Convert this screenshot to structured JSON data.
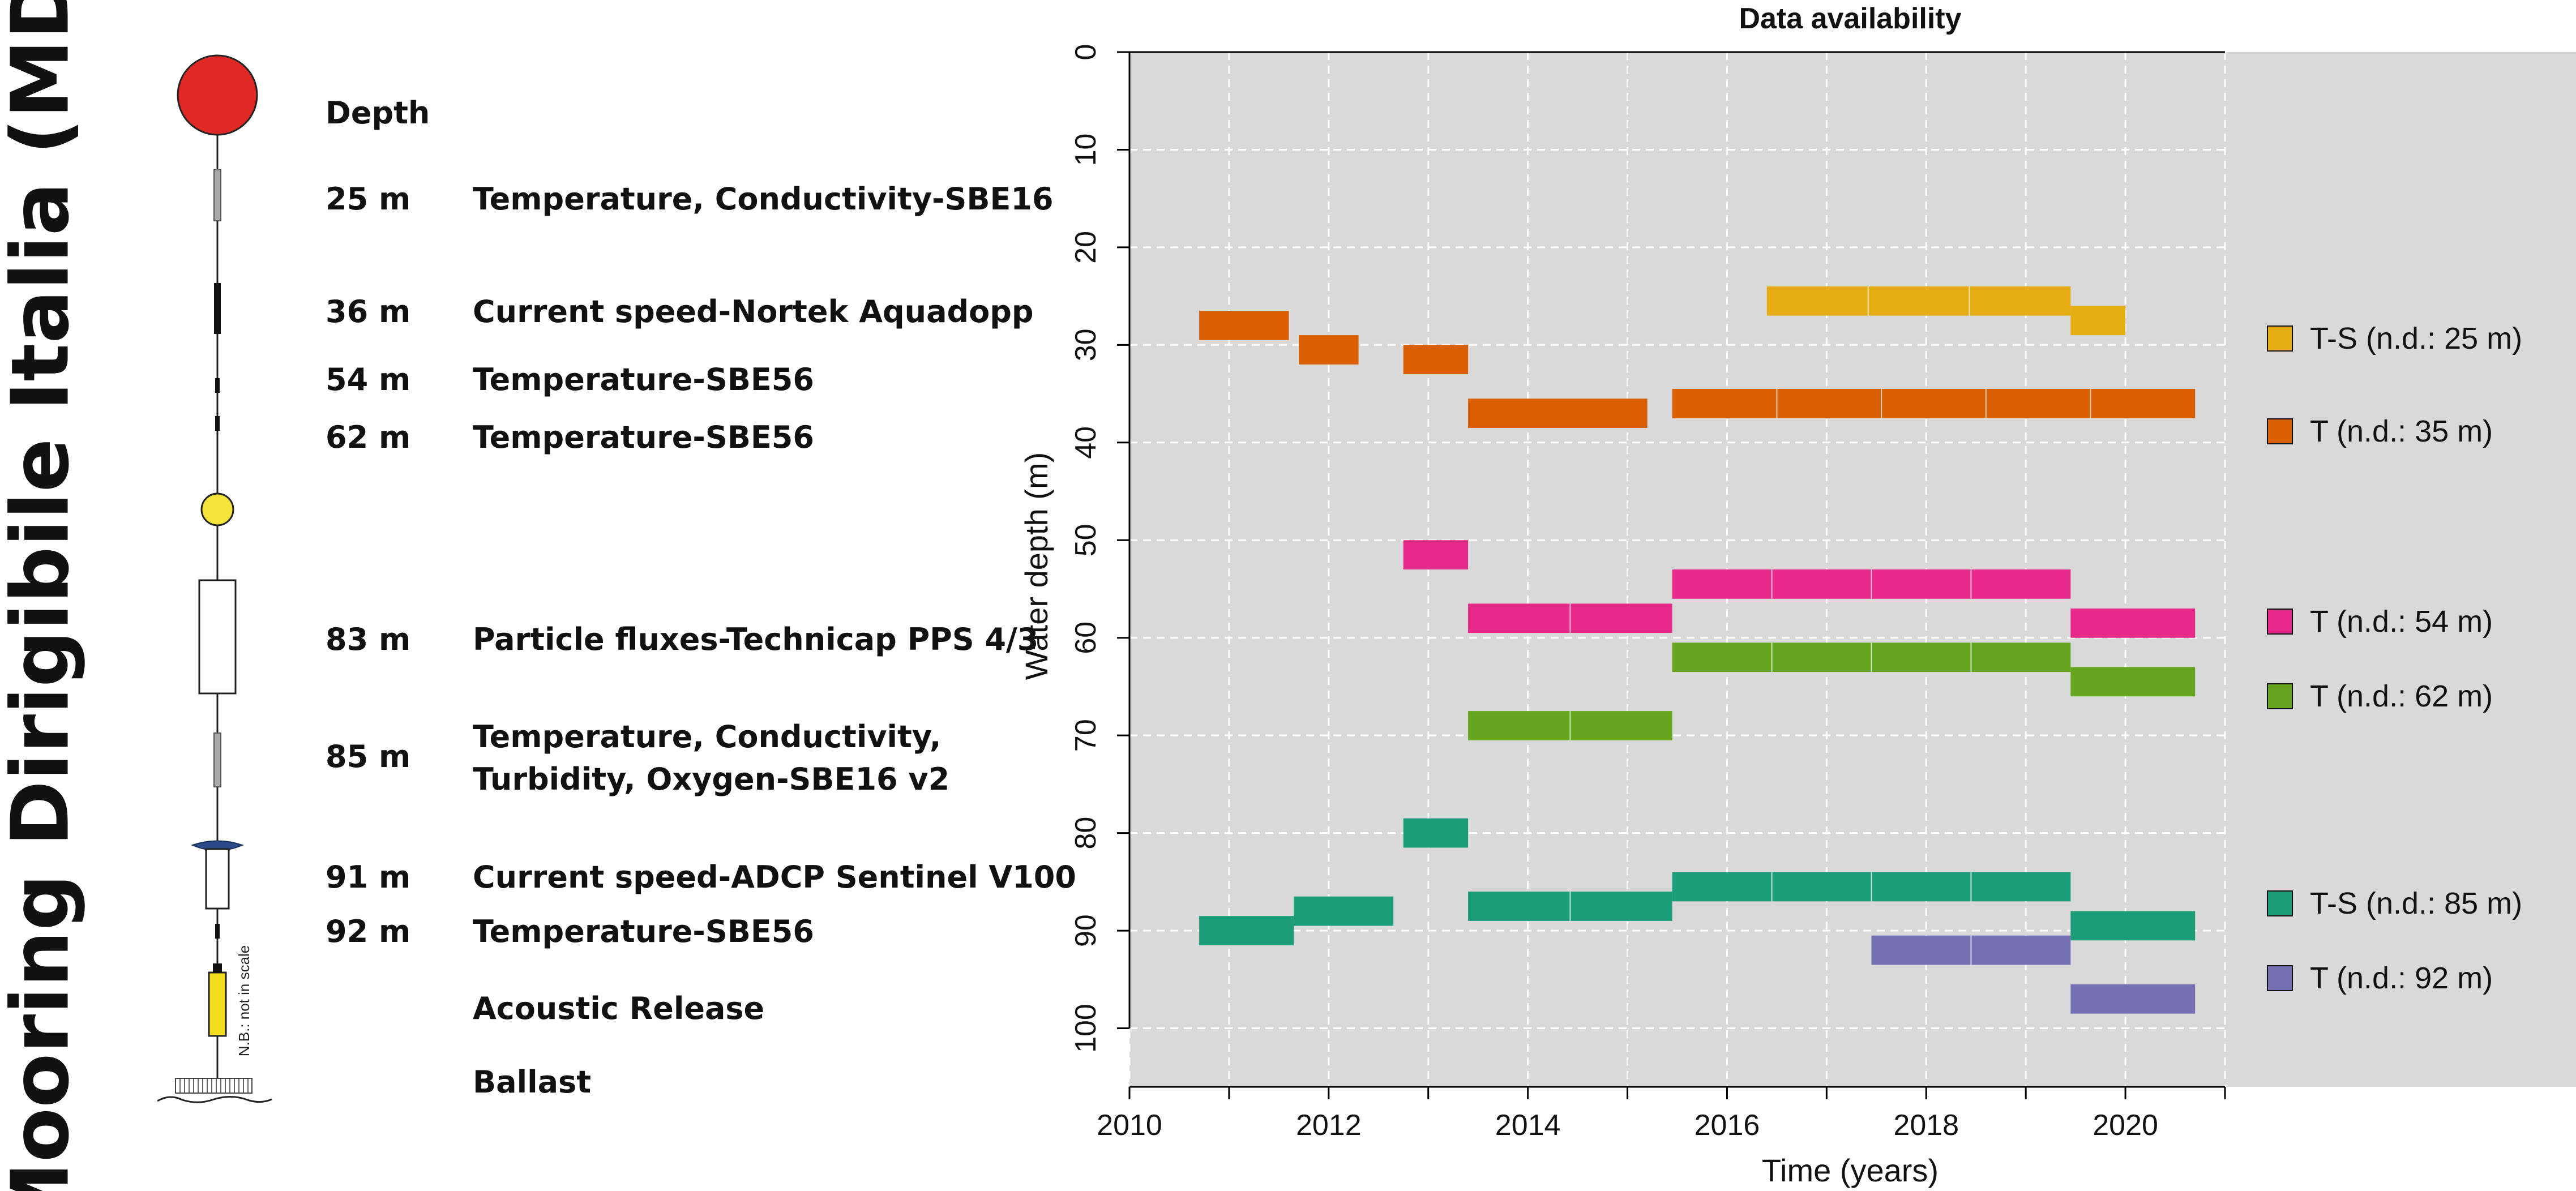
{
  "mooring": {
    "title": "Mooring Dirigibile Italia (MDI)",
    "depth_header": "Depth",
    "scale_note": "N.B.: not in scale",
    "colors": {
      "buoy_red": "#e02826",
      "buoy_yellow": "#f5e43a",
      "release": "#f2df1a",
      "collar": "#2a4a8a"
    },
    "instruments": [
      {
        "depth": "25 m",
        "label": "Temperature, Conductivity-SBE16"
      },
      {
        "depth": "36 m",
        "label": "Current speed-Nortek Aquadopp"
      },
      {
        "depth": "54 m",
        "label": "Temperature-SBE56"
      },
      {
        "depth": "62 m",
        "label": "Temperature-SBE56"
      },
      {
        "depth": "83 m",
        "label": "Particle fluxes-Technicap PPS 4/3"
      },
      {
        "depth": "85 m",
        "label_line1": "Temperature, Conductivity,",
        "label_line2": "Turbidity, Oxygen-SBE16 v2"
      },
      {
        "depth": "91 m",
        "label": "Current speed-ADCP Sentinel V100"
      },
      {
        "depth": "92 m",
        "label": "Temperature-SBE56"
      },
      {
        "label": "Acoustic Release"
      },
      {
        "label": "Ballast"
      }
    ]
  },
  "chart_data": {
    "type": "bar",
    "subtype": "timeline",
    "title": "Data availability",
    "xlabel": "Time (years)",
    "ylabel": "Water depth (m)",
    "xlim": [
      2010,
      2021
    ],
    "ylim": [
      0,
      106
    ],
    "y_inverted": true,
    "xticks": [
      2010,
      2012,
      2014,
      2016,
      2018,
      2020
    ],
    "yticks": [
      0,
      10,
      20,
      30,
      40,
      50,
      60,
      70,
      80,
      90,
      100
    ],
    "grid": true,
    "zero_line": 0,
    "bar_height_m": 3,
    "legend_position": "right",
    "series": [
      {
        "name": "T-S (n.d.: 25 m)",
        "color": "#e6ad12",
        "segments": [
          {
            "start": 2016.4,
            "end": 2019.45,
            "depth": 25.5
          },
          {
            "start": 2019.45,
            "end": 2020.0,
            "depth": 27.5
          }
        ]
      },
      {
        "name": "T (n.d.: 35 m)",
        "color": "#d95f02",
        "segments": [
          {
            "start": 2010.7,
            "end": 2011.6,
            "depth": 28
          },
          {
            "start": 2011.7,
            "end": 2012.3,
            "depth": 30.5
          },
          {
            "start": 2012.75,
            "end": 2013.4,
            "depth": 31.5
          },
          {
            "start": 2013.4,
            "end": 2015.2,
            "depth": 37
          },
          {
            "start": 2015.45,
            "end": 2020.7,
            "depth": 36
          }
        ]
      },
      {
        "name": "T (n.d.: 54 m)",
        "color": "#e7298a",
        "segments": [
          {
            "start": 2012.75,
            "end": 2013.4,
            "depth": 51.5
          },
          {
            "start": 2013.4,
            "end": 2015.45,
            "depth": 58
          },
          {
            "start": 2015.45,
            "end": 2019.45,
            "depth": 54.5
          },
          {
            "start": 2019.45,
            "end": 2020.7,
            "depth": 58.5
          }
        ]
      },
      {
        "name": "T (n.d.: 62 m)",
        "color": "#66a61e",
        "segments": [
          {
            "start": 2013.4,
            "end": 2015.45,
            "depth": 69
          },
          {
            "start": 2015.45,
            "end": 2019.45,
            "depth": 62
          },
          {
            "start": 2019.45,
            "end": 2020.7,
            "depth": 64.5
          }
        ]
      },
      {
        "name": "T-S (n.d.: 85 m)",
        "color": "#1b9e77",
        "segments": [
          {
            "start": 2010.7,
            "end": 2011.65,
            "depth": 90
          },
          {
            "start": 2011.65,
            "end": 2012.65,
            "depth": 88
          },
          {
            "start": 2012.75,
            "end": 2013.4,
            "depth": 80
          },
          {
            "start": 2013.4,
            "end": 2015.45,
            "depth": 87.5
          },
          {
            "start": 2015.45,
            "end": 2019.45,
            "depth": 85.5
          },
          {
            "start": 2019.45,
            "end": 2020.7,
            "depth": 89.5
          }
        ]
      },
      {
        "name": "T (n.d.: 92 m)",
        "color": "#7570b3",
        "segments": [
          {
            "start": 2017.45,
            "end": 2019.45,
            "depth": 92
          },
          {
            "start": 2019.45,
            "end": 2020.7,
            "depth": 97
          }
        ]
      }
    ]
  }
}
